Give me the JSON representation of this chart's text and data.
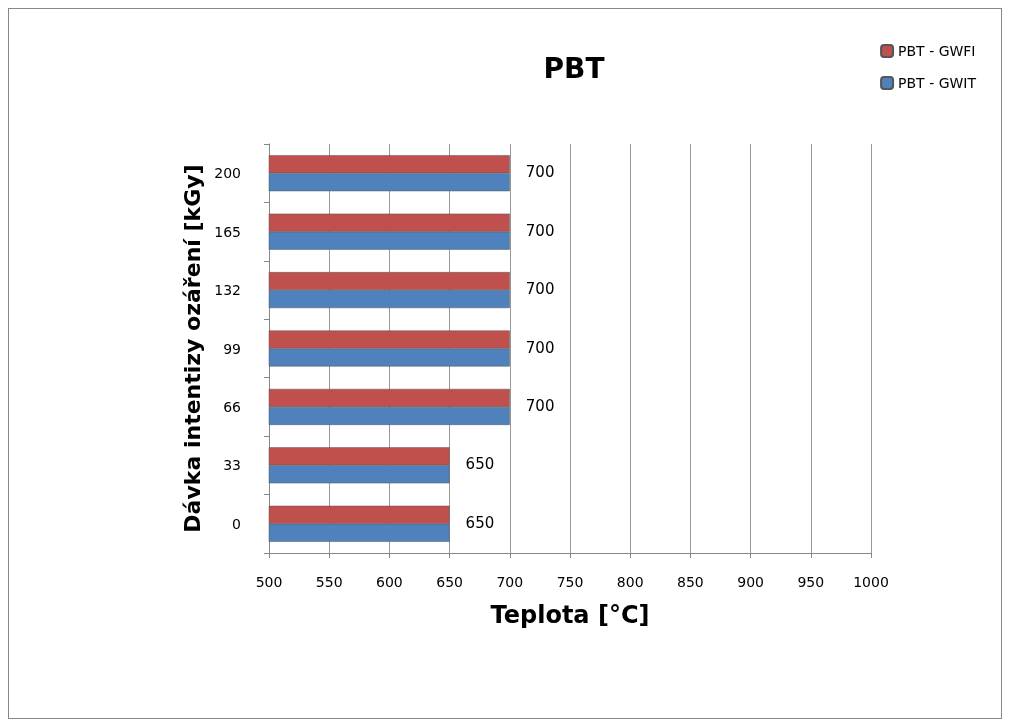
{
  "chart_data": {
    "type": "bar",
    "orientation": "horizontal",
    "title": "PBT",
    "xlabel": "Teplota [°C]",
    "ylabel": "Dávka intentizy ozáření [kGy]",
    "categories": [
      "200",
      "165",
      "132",
      "99",
      "66",
      "33",
      "0"
    ],
    "series": [
      {
        "name": "PBT - GWFI",
        "color": "#c0504d",
        "values": [
          700,
          700,
          700,
          700,
          700,
          650,
          650
        ]
      },
      {
        "name": "PBT - GWIT",
        "color": "#4f81bd",
        "values": [
          700,
          700,
          700,
          700,
          700,
          650,
          650
        ],
        "value_labels": [
          "700",
          "700",
          "700",
          "700",
          "700",
          "650",
          "650"
        ]
      }
    ],
    "xlim": [
      500,
      1000
    ],
    "xticks": [
      500,
      550,
      600,
      650,
      700,
      750,
      800,
      850,
      900,
      950,
      1000
    ],
    "grid": "x",
    "legend": "top right"
  }
}
